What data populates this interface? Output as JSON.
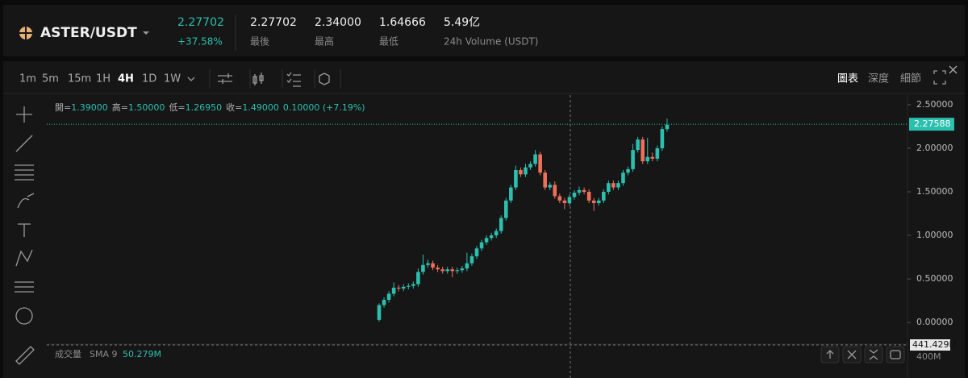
{
  "header": {
    "symbol": "ASTER/USDT",
    "price": "2.27702",
    "change": "+37.58%",
    "stats": [
      {
        "value": "2.27702",
        "label": "最後"
      },
      {
        "value": "2.34000",
        "label": "最高"
      },
      {
        "value": "1.64666",
        "label": "最低"
      },
      {
        "value": "5.49亿",
        "label": "24h Volume (USDT)"
      }
    ]
  },
  "toolbar": {
    "intervals": [
      "1m",
      "5m",
      "15m",
      "1H",
      "4H",
      "1D",
      "1W"
    ],
    "tabs": [
      "圖表",
      "深度",
      "細節"
    ]
  },
  "chart_data": {
    "type": "candlestick",
    "legend": [
      {
        "label": "開=",
        "value": "1.39000"
      },
      {
        "label": "高=",
        "value": "1.50000"
      },
      {
        "label": "低=",
        "value": "1.26950"
      },
      {
        "label": "收=",
        "value": "1.49000"
      }
    ],
    "legend_change": "0.10000 (+7.19%)",
    "up_color": "#2bbfae",
    "down_color": "#ef6f5b",
    "open": [
      0.03,
      0.2,
      0.26,
      0.33,
      0.4,
      0.39,
      0.41,
      0.42,
      0.44,
      0.58,
      0.66,
      0.68,
      0.63,
      0.61,
      0.59,
      0.61,
      0.59,
      0.6,
      0.62,
      0.68,
      0.76,
      0.85,
      0.92,
      0.97,
      1.0,
      1.05,
      1.2,
      1.4,
      1.55,
      1.75,
      1.7,
      1.78,
      1.82,
      1.93,
      1.72,
      1.55,
      1.58,
      1.45,
      1.4,
      1.37,
      1.44,
      1.49,
      1.52,
      1.5,
      1.4,
      1.37,
      1.4,
      1.5,
      1.6,
      1.55,
      1.6,
      1.72,
      1.76,
      1.98,
      2.1,
      1.85,
      1.9,
      1.88,
      2.0,
      2.22
    ],
    "high": [
      0.22,
      0.29,
      0.36,
      0.46,
      0.43,
      0.44,
      0.45,
      0.47,
      0.62,
      0.78,
      0.72,
      0.71,
      0.66,
      0.64,
      0.64,
      0.64,
      0.63,
      0.65,
      0.8,
      0.79,
      0.88,
      0.95,
      1.0,
      1.03,
      1.08,
      1.23,
      1.43,
      1.58,
      1.8,
      1.78,
      1.82,
      1.85,
      1.98,
      1.96,
      1.75,
      1.61,
      1.62,
      1.48,
      1.43,
      1.47,
      1.52,
      1.56,
      1.55,
      1.53,
      1.43,
      1.43,
      1.53,
      1.63,
      1.63,
      1.63,
      1.75,
      1.79,
      2.05,
      2.13,
      2.13,
      2.12,
      1.95,
      2.03,
      2.25,
      2.34
    ],
    "low": [
      0.01,
      0.17,
      0.23,
      0.3,
      0.36,
      0.36,
      0.38,
      0.39,
      0.41,
      0.55,
      0.63,
      0.6,
      0.58,
      0.56,
      0.56,
      0.52,
      0.56,
      0.57,
      0.59,
      0.65,
      0.73,
      0.82,
      0.89,
      0.94,
      0.97,
      1.02,
      1.17,
      1.37,
      1.52,
      1.67,
      1.67,
      1.75,
      1.79,
      1.69,
      1.52,
      1.52,
      1.42,
      1.37,
      1.3,
      1.34,
      1.41,
      1.46,
      1.47,
      1.37,
      1.28,
      1.34,
      1.37,
      1.47,
      1.52,
      1.52,
      1.57,
      1.69,
      1.73,
      1.95,
      1.82,
      1.82,
      1.85,
      1.85,
      1.97,
      2.19
    ],
    "close": [
      0.2,
      0.26,
      0.33,
      0.4,
      0.39,
      0.41,
      0.42,
      0.44,
      0.58,
      0.66,
      0.68,
      0.63,
      0.61,
      0.59,
      0.61,
      0.59,
      0.6,
      0.62,
      0.68,
      0.76,
      0.85,
      0.92,
      0.97,
      1.0,
      1.05,
      1.2,
      1.4,
      1.55,
      1.75,
      1.7,
      1.78,
      1.82,
      1.93,
      1.72,
      1.55,
      1.58,
      1.45,
      1.4,
      1.37,
      1.44,
      1.49,
      1.52,
      1.5,
      1.4,
      1.37,
      1.4,
      1.5,
      1.6,
      1.55,
      1.6,
      1.72,
      1.76,
      1.98,
      2.1,
      1.85,
      1.9,
      1.88,
      2.0,
      2.22,
      2.27
    ],
    "ylim": [
      -0.23,
      2.61
    ],
    "yticks": [
      {
        "value": 2.5,
        "label": "2.50000"
      },
      {
        "value": 2.0,
        "label": "2.00000"
      },
      {
        "value": 1.5,
        "label": "1.50000"
      },
      {
        "value": 1.0,
        "label": "1.00000"
      },
      {
        "value": 0.5,
        "label": "0.50000"
      },
      {
        "value": 0.0,
        "label": "0.00000"
      }
    ],
    "last_price": 2.27588,
    "volume_pane": {
      "title": "成交量",
      "indicator": "SMA 9",
      "sma_value": "50.279M",
      "crosshair_label": "441.429M",
      "ytick_label": "400M"
    }
  }
}
